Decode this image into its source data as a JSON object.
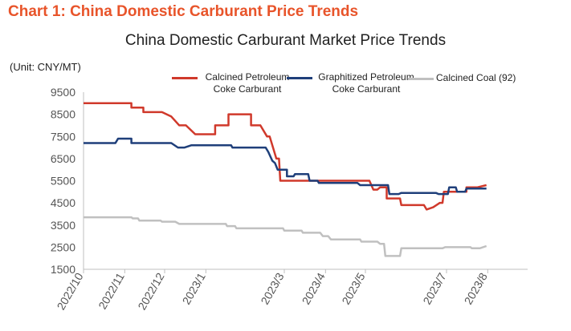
{
  "heading": "Chart 1: China Domestic Carburant Price Trends",
  "chart_data": {
    "type": "line",
    "title": "China Domestic Carburant Market Price Trends",
    "unit_label": "(Unit: CNY/MT)",
    "xlabel": "",
    "ylabel": "",
    "ylim": [
      1500,
      9500
    ],
    "yticks": [
      1500,
      2500,
      3500,
      4500,
      5500,
      6500,
      7500,
      8500,
      9500
    ],
    "xlim": [
      "2022-10-01",
      "2023-08-31"
    ],
    "xticks": [
      {
        "label": "2022/10",
        "date": "2022-10-01"
      },
      {
        "label": "2022/11",
        "date": "2022-11-01"
      },
      {
        "label": "2022/12",
        "date": "2022-12-01"
      },
      {
        "label": "2023/1",
        "date": "2023-01-01"
      },
      {
        "label": "2023/3",
        "date": "2023-03-01"
      },
      {
        "label": "2023/4",
        "date": "2023-04-01"
      },
      {
        "label": "2023/5",
        "date": "2023-05-01"
      },
      {
        "label": "2023/7",
        "date": "2023-07-01"
      },
      {
        "label": "2023/8",
        "date": "2023-08-01"
      }
    ],
    "grid": false,
    "legend_position": "top",
    "series": [
      {
        "name": "Calcined Petroleum Coke Carburant",
        "color": "#d0392b",
        "points": [
          [
            "2022-10-01",
            9000
          ],
          [
            "2022-11-06",
            9000
          ],
          [
            "2022-11-06",
            8800
          ],
          [
            "2022-11-15",
            8800
          ],
          [
            "2022-11-15",
            8600
          ],
          [
            "2022-11-29",
            8600
          ],
          [
            "2022-12-06",
            8400
          ],
          [
            "2022-12-12",
            8000
          ],
          [
            "2022-12-17",
            8000
          ],
          [
            "2022-12-24",
            7600
          ],
          [
            "2023-01-08",
            7600
          ],
          [
            "2023-01-08",
            8000
          ],
          [
            "2023-01-18",
            8000
          ],
          [
            "2023-01-18",
            8500
          ],
          [
            "2023-02-04",
            8500
          ],
          [
            "2023-02-04",
            8000
          ],
          [
            "2023-02-11",
            8000
          ],
          [
            "2023-02-16",
            7500
          ],
          [
            "2023-02-18",
            7500
          ],
          [
            "2023-02-23",
            6500
          ],
          [
            "2023-02-25",
            6500
          ],
          [
            "2023-02-26",
            5500
          ],
          [
            "2023-05-04",
            5500
          ],
          [
            "2023-05-07",
            5100
          ],
          [
            "2023-05-10",
            5100
          ],
          [
            "2023-05-12",
            5200
          ],
          [
            "2023-05-17",
            5200
          ],
          [
            "2023-05-17",
            4700
          ],
          [
            "2023-05-27",
            4700
          ],
          [
            "2023-05-28",
            4400
          ],
          [
            "2023-06-14",
            4400
          ],
          [
            "2023-06-16",
            4200
          ],
          [
            "2023-06-21",
            4300
          ],
          [
            "2023-06-26",
            4500
          ],
          [
            "2023-06-28",
            4500
          ],
          [
            "2023-06-29",
            5000
          ],
          [
            "2023-07-08",
            5000
          ],
          [
            "2023-07-08",
            5000
          ],
          [
            "2023-07-16",
            5000
          ],
          [
            "2023-07-16",
            5200
          ],
          [
            "2023-07-24",
            5200
          ],
          [
            "2023-07-31",
            5300
          ]
        ]
      },
      {
        "name": "Graphitized Petroleum Coke Carburant",
        "color": "#1f3f7a",
        "points": [
          [
            "2022-10-01",
            7200
          ],
          [
            "2022-10-25",
            7200
          ],
          [
            "2022-10-27",
            7400
          ],
          [
            "2022-11-06",
            7400
          ],
          [
            "2022-11-06",
            7200
          ],
          [
            "2022-12-06",
            7200
          ],
          [
            "2022-12-11",
            7000
          ],
          [
            "2022-12-16",
            7000
          ],
          [
            "2022-12-21",
            7100
          ],
          [
            "2023-01-20",
            7100
          ],
          [
            "2023-01-21",
            7000
          ],
          [
            "2023-02-15",
            7000
          ],
          [
            "2023-02-17",
            6800
          ],
          [
            "2023-02-20",
            6400
          ],
          [
            "2023-02-22",
            6300
          ],
          [
            "2023-02-24",
            6000
          ],
          [
            "2023-03-03",
            6000
          ],
          [
            "2023-03-03",
            5700
          ],
          [
            "2023-03-08",
            5700
          ],
          [
            "2023-03-09",
            5800
          ],
          [
            "2023-03-19",
            5800
          ],
          [
            "2023-03-20",
            5500
          ],
          [
            "2023-03-26",
            5500
          ],
          [
            "2023-03-27",
            5400
          ],
          [
            "2023-04-25",
            5400
          ],
          [
            "2023-04-27",
            5300
          ],
          [
            "2023-05-18",
            5300
          ],
          [
            "2023-05-19",
            4900
          ],
          [
            "2023-05-26",
            4900
          ],
          [
            "2023-05-28",
            4950
          ],
          [
            "2023-06-23",
            4950
          ],
          [
            "2023-06-25",
            4900
          ],
          [
            "2023-07-02",
            4900
          ],
          [
            "2023-07-03",
            5200
          ],
          [
            "2023-07-08",
            5200
          ],
          [
            "2023-07-09",
            5000
          ],
          [
            "2023-07-15",
            5000
          ],
          [
            "2023-07-16",
            5150
          ],
          [
            "2023-07-31",
            5150
          ]
        ]
      },
      {
        "name": "Calcined Coal (92)",
        "color": "#c0c0c0",
        "points": [
          [
            "2022-10-01",
            3850
          ],
          [
            "2022-11-06",
            3850
          ],
          [
            "2022-11-07",
            3800
          ],
          [
            "2022-11-11",
            3800
          ],
          [
            "2022-11-12",
            3700
          ],
          [
            "2022-11-28",
            3700
          ],
          [
            "2022-11-29",
            3650
          ],
          [
            "2022-12-09",
            3650
          ],
          [
            "2022-12-12",
            3550
          ],
          [
            "2023-01-16",
            3550
          ],
          [
            "2023-01-17",
            3450
          ],
          [
            "2023-01-23",
            3450
          ],
          [
            "2023-01-24",
            3350
          ],
          [
            "2023-02-28",
            3350
          ],
          [
            "2023-03-01",
            3250
          ],
          [
            "2023-03-14",
            3250
          ],
          [
            "2023-03-15",
            3150
          ],
          [
            "2023-03-28",
            3150
          ],
          [
            "2023-03-30",
            3000
          ],
          [
            "2023-04-03",
            3000
          ],
          [
            "2023-04-05",
            2850
          ],
          [
            "2023-04-27",
            2850
          ],
          [
            "2023-04-28",
            2750
          ],
          [
            "2023-05-10",
            2750
          ],
          [
            "2023-05-12",
            2650
          ],
          [
            "2023-05-15",
            2650
          ],
          [
            "2023-05-16",
            2100
          ],
          [
            "2023-05-27",
            2100
          ],
          [
            "2023-05-28",
            2450
          ],
          [
            "2023-06-28",
            2450
          ],
          [
            "2023-06-30",
            2500
          ],
          [
            "2023-07-19",
            2500
          ],
          [
            "2023-07-20",
            2450
          ],
          [
            "2023-07-26",
            2450
          ],
          [
            "2023-07-31",
            2550
          ]
        ]
      }
    ]
  }
}
